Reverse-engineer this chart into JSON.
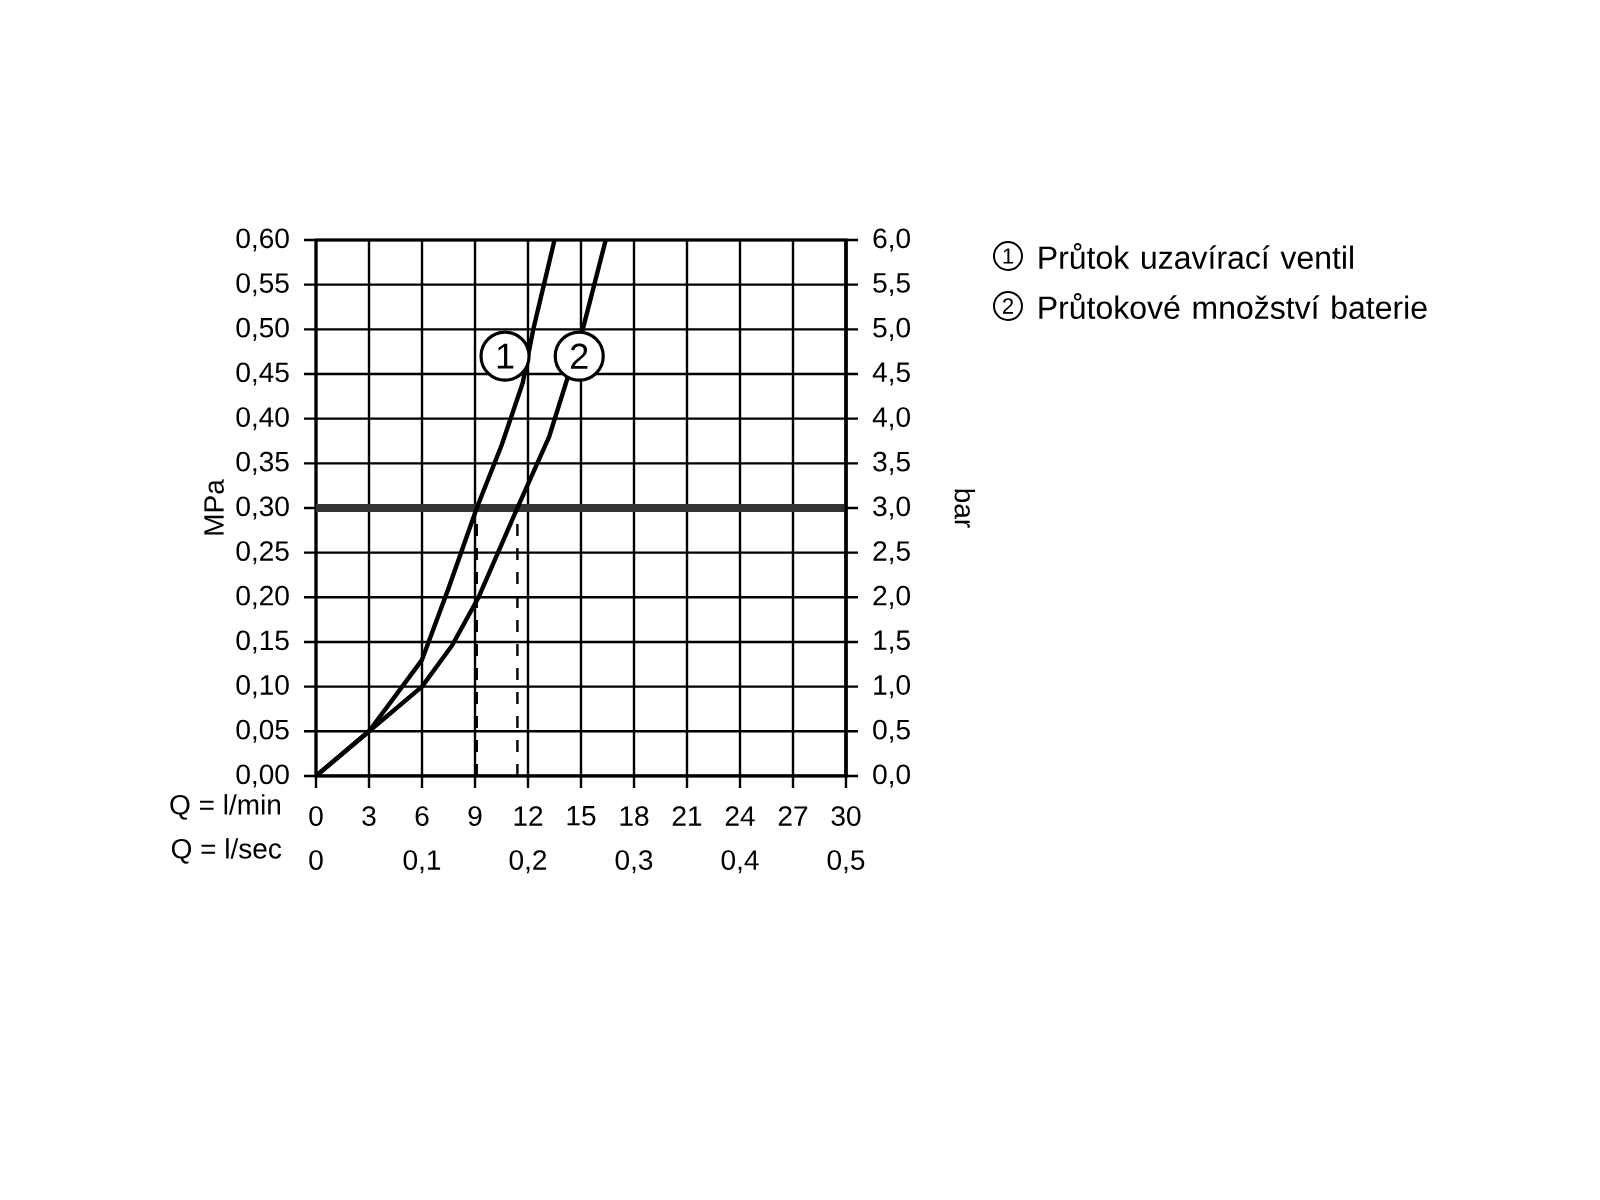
{
  "chart_data": {
    "type": "line",
    "xlabel": "Q = l/min",
    "x2label": "Q = l/sec",
    "ylabel": "MPa",
    "y2label": "bar",
    "xlim": [
      0,
      30
    ],
    "xticks": [
      0,
      3,
      6,
      9,
      12,
      15,
      18,
      21,
      24,
      27,
      30
    ],
    "x2lim": [
      0,
      0.5
    ],
    "x2ticks": [
      0,
      {
        "value": 0.1,
        "label": "0,1"
      },
      {
        "value": 0.2,
        "label": "0,2"
      },
      {
        "value": 0.3,
        "label": "0,3"
      },
      {
        "value": 0.4,
        "label": "0,4"
      },
      {
        "value": 0.5,
        "label": "0,5"
      }
    ],
    "ylim": [
      0,
      0.6
    ],
    "yticks": [
      {
        "value": 0,
        "label": "0,00"
      },
      {
        "value": 0.05,
        "label": "0,05"
      },
      {
        "value": 0.1,
        "label": "0,10"
      },
      {
        "value": 0.15,
        "label": "0,15"
      },
      {
        "value": 0.2,
        "label": "0,20"
      },
      {
        "value": 0.25,
        "label": "0,25"
      },
      {
        "value": 0.3,
        "label": "0,30"
      },
      {
        "value": 0.35,
        "label": "0,35"
      },
      {
        "value": 0.4,
        "label": "0,40"
      },
      {
        "value": 0.45,
        "label": "0,45"
      },
      {
        "value": 0.5,
        "label": "0,50"
      },
      {
        "value": 0.55,
        "label": "0,55"
      },
      {
        "value": 0.6,
        "label": "0,60"
      }
    ],
    "y2lim": [
      0,
      6
    ],
    "y2ticks": [
      {
        "value": 0,
        "label": "0,0"
      },
      {
        "value": 0.5,
        "label": "0,5"
      },
      {
        "value": 1,
        "label": "1,0"
      },
      {
        "value": 1.5,
        "label": "1,5"
      },
      {
        "value": 2,
        "label": "2,0"
      },
      {
        "value": 2.5,
        "label": "2,5"
      },
      {
        "value": 3,
        "label": "3,0"
      },
      {
        "value": 3.5,
        "label": "3,5"
      },
      {
        "value": 4,
        "label": "4,0"
      },
      {
        "value": 4.5,
        "label": "4,5"
      },
      {
        "value": 5,
        "label": "5,0"
      },
      {
        "value": 5.5,
        "label": "5,5"
      },
      {
        "value": 6,
        "label": "6,0"
      }
    ],
    "grid": true,
    "legend": "right",
    "marker": "none",
    "line_style": "solid",
    "series": [
      {
        "name": "Průtok uzavírací ventil",
        "color": "#000000",
        "x": [
          0,
          3,
          4.5,
          6,
          7.5,
          9.1,
          10.5,
          11.7,
          12.3,
          13.5
        ],
        "values": [
          0,
          0.05,
          0.09,
          0.13,
          0.21,
          0.3,
          0.37,
          0.44,
          0.5,
          0.6
        ]
      },
      {
        "name": "Průtokové množství baterie",
        "color": "#000000",
        "x": [
          0,
          3,
          6,
          7.7,
          9.2,
          11.4,
          13.2,
          15.1,
          16.4
        ],
        "values": [
          0,
          0.05,
          0.1,
          0.146,
          0.2,
          0.3,
          0.38,
          0.5,
          0.6
        ]
      },
      {
        "color": "#000000",
        "line_style": "dashed",
        "x": [
          9.1,
          9.1
        ],
        "values": [
          0,
          0.3
        ]
      },
      {
        "color": "#000000",
        "line_style": "dashed",
        "x": [
          11.4,
          11.4
        ],
        "values": [
          0,
          0.3
        ]
      }
    ],
    "ref_lines": [
      {
        "axis": "y",
        "value": 0.3,
        "color": "#333333"
      }
    ],
    "annotations": [
      {
        "text": "1",
        "x": 10.7,
        "y": 0.47
      },
      {
        "text": "2",
        "x": 14.9,
        "y": 0.47
      }
    ]
  }
}
